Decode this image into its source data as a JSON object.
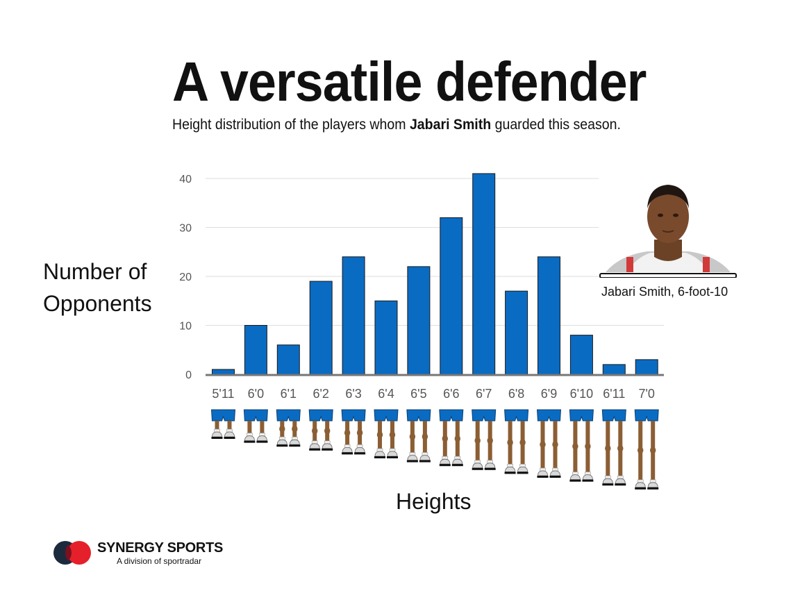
{
  "header": {
    "title": "A versatile defender",
    "subtitle_pre": "Height distribution of the players whom ",
    "subtitle_bold": "Jabari Smith",
    "subtitle_post": " guarded this season."
  },
  "player": {
    "caption": "Jabari Smith, 6-foot-10"
  },
  "branding": {
    "name": "SYNERGY SPORTS",
    "sub": "A division of sportradar"
  },
  "colors": {
    "bar": "#0a6bc2",
    "bar_stroke": "#1a1a1a",
    "legs": "#8b5e34",
    "shorts": "#0a6bc2"
  },
  "chart_data": {
    "type": "bar",
    "title": "A versatile defender",
    "subtitle": "Height distribution of the players whom Jabari Smith guarded this season.",
    "xlabel": "Heights",
    "ylabel": "Number of Opponents",
    "ylim": [
      0,
      40
    ],
    "yticks": [
      0,
      10,
      20,
      30,
      40
    ],
    "grid": true,
    "categories": [
      "5'11",
      "6'0",
      "6'1",
      "6'2",
      "6'3",
      "6'4",
      "6'5",
      "6'6",
      "6'7",
      "6'8",
      "6'9",
      "6'10",
      "6'11",
      "7'0"
    ],
    "values": [
      1,
      10,
      6,
      19,
      24,
      15,
      22,
      32,
      41,
      17,
      24,
      8,
      2,
      3
    ]
  }
}
